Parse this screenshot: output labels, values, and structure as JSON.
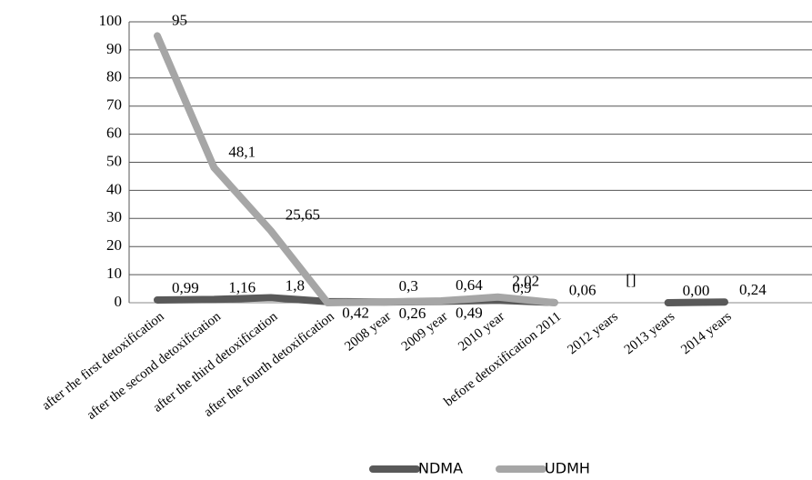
{
  "chart_data": {
    "type": "line",
    "categories": [
      "after rhe first detoxification",
      "after the second detoxification",
      "after the third detoxification",
      "after the fourth detoxification",
      "2008 year",
      "2009 year",
      "2010 year",
      "before detoxification 2011",
      "2012 years",
      "2013 years",
      "2014 years"
    ],
    "series": [
      {
        "name": "NDMA",
        "color": "#595959",
        "values": [
          0.99,
          1.16,
          1.8,
          0.42,
          0.26,
          0.49,
          0.9,
          0.06,
          null,
          0.0,
          0.24
        ],
        "value_labels": [
          "0,99",
          "1,16",
          "1,8",
          "0,42",
          "0,26",
          "0,49",
          "0,9",
          "0,06",
          "[]",
          "0,00",
          "0,24"
        ]
      },
      {
        "name": "UDMH",
        "color": "#a6a6a6",
        "values": [
          95,
          48.1,
          25.65,
          0,
          0.3,
          0.64,
          2.02,
          0,
          null,
          null,
          null
        ],
        "value_labels": [
          "95",
          "48,1",
          "25,65",
          null,
          "0,3",
          "0,64",
          "2,02",
          null,
          null,
          null,
          null
        ]
      }
    ],
    "ylim": [
      0,
      100
    ],
    "yticks": [
      0,
      10,
      20,
      30,
      40,
      50,
      60,
      70,
      80,
      90,
      100
    ],
    "grid": true,
    "legend": "bottom"
  }
}
